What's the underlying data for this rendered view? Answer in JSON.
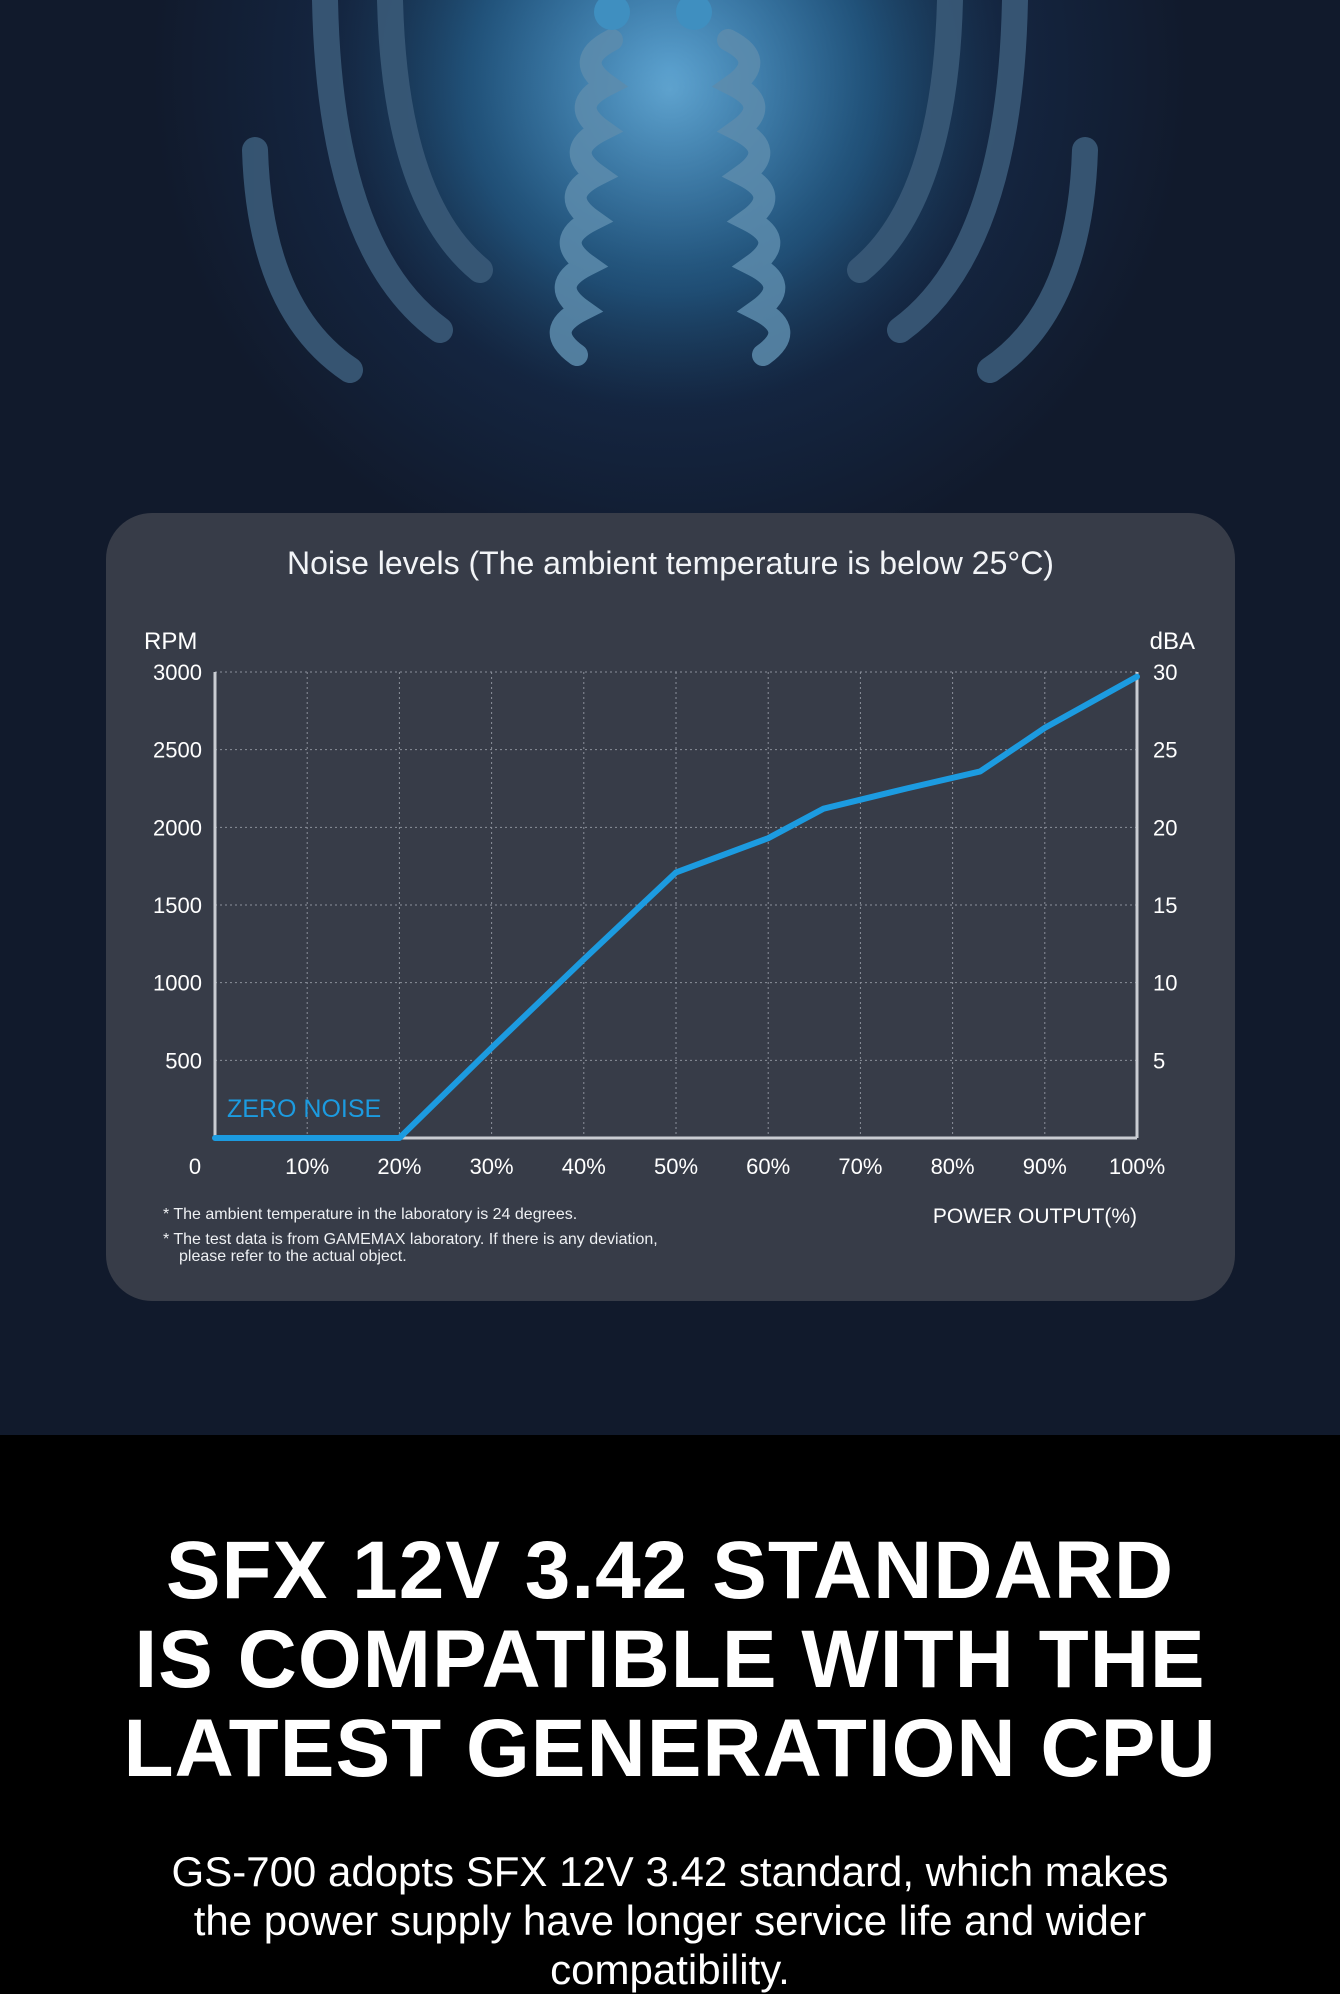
{
  "chart_data": {
    "type": "line",
    "title": "Noise levels (The ambient temperature is below 25°C)",
    "ylabel_left": "RPM",
    "ylabel_right": "dBA",
    "xlabel": "POWER OUTPUT(%)",
    "x_origin_label": "0",
    "x_ticks": [
      10,
      20,
      30,
      40,
      50,
      60,
      70,
      80,
      90,
      100
    ],
    "x_tick_labels": [
      "10%",
      "20%",
      "30%",
      "40%",
      "50%",
      "60%",
      "70%",
      "80%",
      "90%",
      "100%"
    ],
    "y_ticks": [
      500,
      1000,
      1500,
      2000,
      2500,
      3000
    ],
    "y_tick_labels": [
      "500",
      "1000",
      "1500",
      "2000",
      "2500",
      "3000"
    ],
    "y2_tick_labels": [
      "5",
      "10",
      "15",
      "20",
      "25",
      "30"
    ],
    "xlim": [
      0,
      100
    ],
    "ylim": [
      0,
      3000
    ],
    "grid": true,
    "annotation": "ZERO NOISE",
    "series": [
      {
        "x": [
          0,
          20,
          30,
          40,
          50,
          60,
          66,
          75,
          83,
          90,
          100
        ],
        "y": [
          0,
          0,
          580,
          1150,
          1710,
          1930,
          2120,
          2250,
          2360,
          2640,
          2970
        ],
        "color": "#1c9be0"
      }
    ]
  },
  "notes": [
    "* The ambient temperature in the laboratory is 24 degrees.",
    "* The test data is from GAMEMAX laboratory. If there is any deviation,",
    "please refer to the actual object."
  ],
  "headline": {
    "line1": "SFX 12V 3.42 STANDARD",
    "line2": "IS COMPATIBLE WITH THE",
    "line3": "LATEST GENERATION CPU"
  },
  "description": {
    "line1": "GS-700 adopts SFX 12V 3.42 standard, which makes",
    "line2": "the power supply have longer service life and wider",
    "line3": "compatibility."
  }
}
